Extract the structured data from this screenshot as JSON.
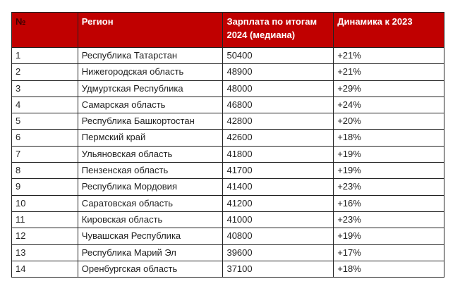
{
  "table": {
    "headers": [
      "№",
      "Регион",
      "Зарплата по итогам 2024 (медиана)",
      "Динамика к 2023"
    ],
    "header_bg": "#c00000",
    "rows": [
      [
        "1",
        "Республика Татарстан",
        "50400",
        "+21%"
      ],
      [
        "2",
        "Нижегородская область",
        "48900",
        "+21%"
      ],
      [
        "3",
        "Удмуртская Республика",
        "48000",
        "+29%"
      ],
      [
        "4",
        "Самарская область",
        "46800",
        "+24%"
      ],
      [
        "5",
        "Республика Башкортостан",
        "42800",
        "+20%"
      ],
      [
        "6",
        "Пермский край",
        "42600",
        "+18%"
      ],
      [
        "7",
        "Ульяновская область",
        "41800",
        "+19%"
      ],
      [
        "8",
        "Пензенская область",
        "41700",
        "+19%"
      ],
      [
        "9",
        "Республика Мордовия",
        "41400",
        "+23%"
      ],
      [
        "10",
        "Саратовская область",
        "41200",
        "+16%"
      ],
      [
        "11",
        "Кировская область",
        "41000",
        "+23%"
      ],
      [
        "12",
        "Чувашская Республика",
        "40800",
        "+19%"
      ],
      [
        "13",
        "Республика Марий Эл",
        "39600",
        "+17%"
      ],
      [
        "14",
        "Оренбургская область",
        "37100",
        "+18%"
      ]
    ]
  }
}
